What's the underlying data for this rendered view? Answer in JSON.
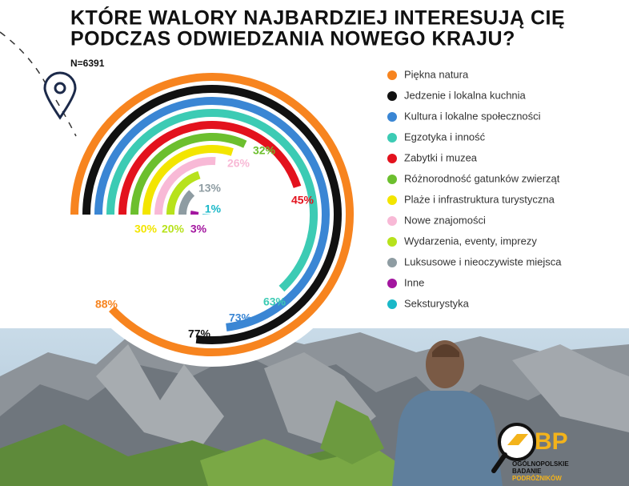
{
  "chart_data": {
    "type": "radial-bar",
    "title_lines": [
      "KTÓRE WALORY NAJBARDZIEJ INTERESUJĄ CIĘ",
      "PODCZAS ODWIEDZANIA NOWEGO KRAJU?"
    ],
    "subtitle": "N=6391",
    "categories": [
      "Piękna natura",
      "Jedzenie i lokalna kuchnia",
      "Kultura i lokalne społeczności",
      "Egzotyka i inność",
      "Zabytki i muzea",
      "Różnorodność gatunków zwierząt",
      "Plaże i infrastruktura turystyczna",
      "Nowe znajomości",
      "Wydarzenia, eventy, imprezy",
      "Luksusowe i nieoczywiste miejsca",
      "Inne",
      "Seksturystyka"
    ],
    "values": [
      88,
      77,
      73,
      63,
      45,
      32,
      30,
      26,
      20,
      13,
      3,
      1
    ],
    "value_labels": [
      "88%",
      "77%",
      "73%",
      "63%",
      "45%",
      "32%",
      "30%",
      "26%",
      "20%",
      "13%",
      "3%",
      "1%"
    ],
    "colors": [
      "#f7841f",
      "#111111",
      "#3a86d4",
      "#3ccbb4",
      "#e3121d",
      "#6cbf2e",
      "#f3e500",
      "#f8b9d6",
      "#b7e21c",
      "#8e9ca2",
      "#a3169f",
      "#1ab8c8"
    ],
    "ylim": [
      0,
      100
    ],
    "legend": "right"
  },
  "logo": {
    "mark": "BP",
    "lines": [
      "OGÓLNOPOLSKIE",
      "BADANIE",
      "PODRÓŻNIKÓW"
    ]
  }
}
